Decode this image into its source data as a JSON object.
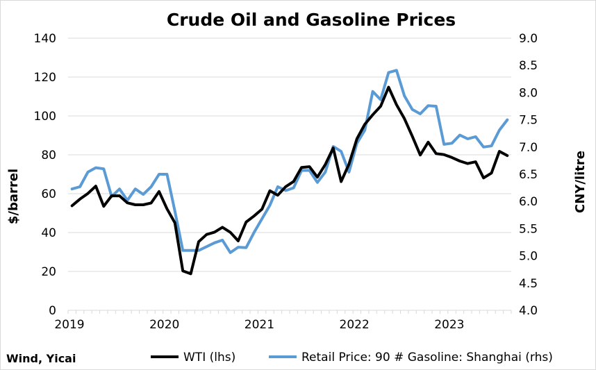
{
  "chart_data": {
    "type": "line",
    "title": "Crude Oil and Gasoline Prices",
    "source": "Wind, Yicai",
    "x_ticks": [
      "2019",
      "2020",
      "2021",
      "2022",
      "2023"
    ],
    "left_axis": {
      "label": "$/barrel",
      "min": 0,
      "max": 140,
      "step": 20,
      "ticks": [
        "0",
        "20",
        "40",
        "60",
        "80",
        "100",
        "120",
        "140"
      ]
    },
    "right_axis": {
      "label": "CNY/litre",
      "min": 4.0,
      "max": 9.0,
      "step": 0.5,
      "ticks": [
        "4.0",
        "4.5",
        "5.0",
        "5.5",
        "6.0",
        "6.5",
        "7.0",
        "7.5",
        "8.0",
        "8.5",
        "9.0"
      ]
    },
    "grid": "horizontal",
    "legend_position": "bottom",
    "start": "2019-01",
    "series": [
      {
        "name": "WTI (lhs)",
        "axis": "left",
        "color": "#000000",
        "values": [
          53.8,
          57.2,
          60.1,
          63.9,
          53.5,
          58.9,
          58.9,
          55.3,
          54.3,
          54.3,
          55.2,
          61.1,
          52.2,
          45.0,
          20.3,
          18.8,
          35.3,
          39.0,
          40.2,
          42.7,
          40.1,
          35.7,
          45.4,
          48.5,
          52.0,
          61.5,
          59.2,
          63.6,
          66.3,
          73.5,
          73.9,
          68.5,
          75.0,
          83.5,
          66.2,
          75.2,
          88.2,
          95.7,
          100.6,
          105.0,
          114.8,
          105.8,
          98.6,
          89.5,
          79.9,
          86.5,
          80.6,
          80.1,
          78.6,
          76.8,
          75.5,
          76.4,
          68.1,
          70.6,
          81.8,
          79.6
        ]
      },
      {
        "name": "Retail Price: 90 # Gasoline: Shanghai (rhs)",
        "axis": "right",
        "color": "#5b9bd5",
        "values": [
          6.23,
          6.27,
          6.54,
          6.62,
          6.6,
          6.09,
          6.23,
          6.02,
          6.23,
          6.13,
          6.27,
          6.5,
          6.5,
          5.82,
          5.1,
          5.1,
          5.1,
          5.17,
          5.24,
          5.29,
          5.06,
          5.16,
          5.15,
          5.43,
          5.68,
          5.93,
          6.27,
          6.2,
          6.25,
          6.57,
          6.57,
          6.35,
          6.54,
          7.01,
          6.92,
          6.54,
          7.07,
          7.31,
          8.02,
          7.87,
          8.37,
          8.41,
          7.94,
          7.69,
          7.61,
          7.76,
          7.75,
          7.05,
          7.07,
          7.22,
          7.15,
          7.19,
          7.0,
          7.02,
          7.31,
          7.5
        ]
      }
    ]
  }
}
